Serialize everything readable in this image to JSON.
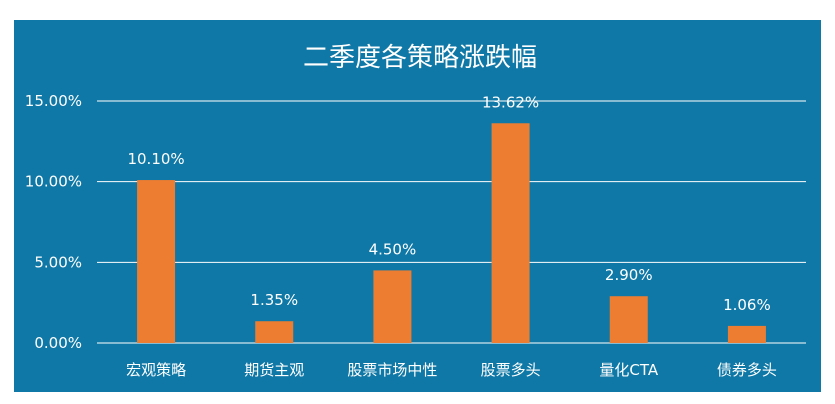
{
  "colors": {
    "background": "#0f78a6",
    "bar": "#ed7d31",
    "grid": "#ffffff",
    "text": "#ffffff"
  },
  "chart_data": {
    "type": "bar",
    "title": "二季度各策略涨跌幅",
    "categories": [
      "宏观策略",
      "期货主观",
      "股票市场中性",
      "股票多头",
      "量化CTA",
      "债券多头"
    ],
    "values": [
      10.1,
      1.35,
      4.5,
      13.62,
      2.9,
      1.06
    ],
    "data_labels": [
      "10.10%",
      "1.35%",
      "4.50%",
      "13.62%",
      "2.90%",
      "1.06%"
    ],
    "y_ticks": [
      "0.00%",
      "5.00%",
      "10.00%",
      "15.00%"
    ],
    "y_tick_values": [
      0,
      5,
      10,
      15
    ],
    "ylim": [
      0,
      15
    ],
    "xlabel": "",
    "ylabel": "",
    "grid": true,
    "legend": "none"
  }
}
